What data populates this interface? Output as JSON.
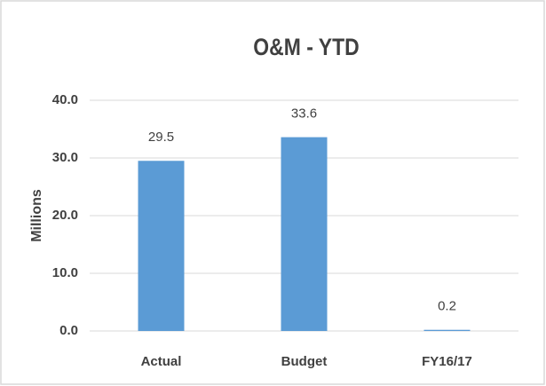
{
  "chart_data": {
    "type": "bar",
    "title": "O&M - YTD",
    "y_label": "Millions",
    "categories": [
      "Actual",
      "Budget",
      "FY16/17"
    ],
    "values": [
      29.5,
      33.6,
      0.2
    ],
    "color": "#5b9bd5",
    "ylim": [
      0,
      40
    ],
    "yticks": [
      {
        "value": 0,
        "label": "0.0"
      },
      {
        "value": 10,
        "label": "10.0"
      },
      {
        "value": 20,
        "label": "20.0"
      },
      {
        "value": 30,
        "label": "30.0"
      },
      {
        "value": 40,
        "label": "40.0"
      }
    ],
    "grid": true
  }
}
